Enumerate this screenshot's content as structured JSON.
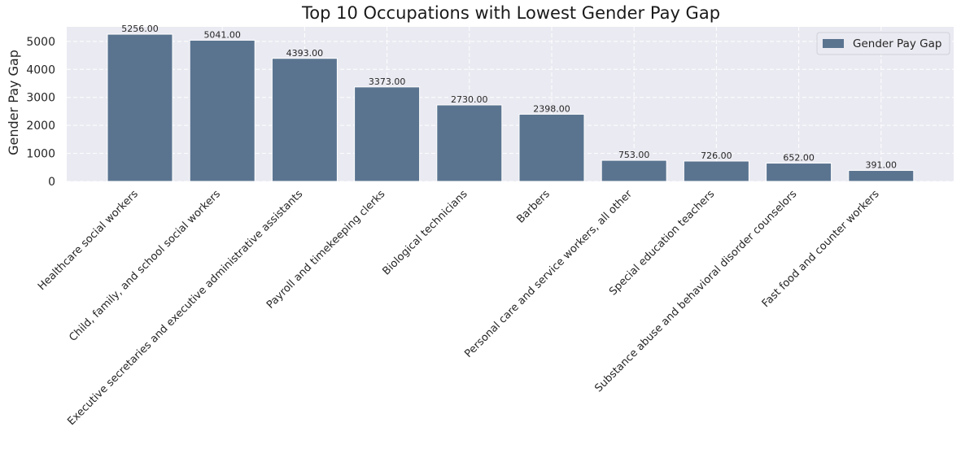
{
  "chart_data": {
    "type": "bar",
    "title": "Top 10 Occupations with Lowest Gender Pay Gap",
    "xlabel": "",
    "ylabel": "Gender Pay Gap",
    "categories": [
      "Healthcare social workers",
      "Child, family, and school social workers",
      "Executive secretaries and executive administrative assistants",
      "Payroll and timekeeping clerks",
      "Biological technicians",
      "Barbers",
      "Personal care and service workers, all other",
      "Special education teachers",
      "Substance abuse and behavioral disorder counselors",
      "Fast food and counter workers"
    ],
    "series": [
      {
        "name": "Gender Pay Gap",
        "values": [
          5256,
          5041,
          4393,
          3373,
          2730,
          2398,
          753,
          726,
          652,
          391
        ],
        "color": "#5a7490"
      }
    ],
    "data_labels": [
      "5256.00",
      "5041.00",
      "4393.00",
      "3373.00",
      "2730.00",
      "2398.00",
      "753.00",
      "726.00",
      "652.00",
      "391.00"
    ],
    "yticks": [
      0,
      1000,
      2000,
      3000,
      4000,
      5000
    ],
    "ylim": [
      0,
      5518.8
    ],
    "grid": true,
    "legend": "top-right",
    "background_color": "#eaeaf2",
    "grid_color": "#ffffff"
  }
}
